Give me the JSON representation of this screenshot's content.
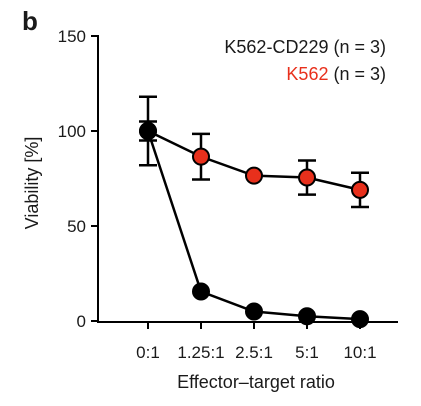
{
  "panel_label": "b",
  "chart_data": {
    "type": "line",
    "title": "",
    "xlabel": "Effector–target ratio",
    "ylabel": "Viability [%]",
    "categories": [
      "0:1",
      "1.25:1",
      "2.5:1",
      "5:1",
      "10:1"
    ],
    "ylim": [
      0,
      150
    ],
    "yticks": [
      0,
      50,
      100,
      150
    ],
    "grid": false,
    "legend_position": "top-right",
    "series": [
      {
        "name": "K562-CD229",
        "n_label": "(n = 3)",
        "color": "#000000",
        "text_color": "#1a1a1a",
        "values": [
          100,
          15.5,
          5,
          2.5,
          1
        ],
        "errors": [
          18,
          1,
          1,
          1,
          1
        ]
      },
      {
        "name": "K562",
        "n_label": "(n = 3)",
        "color": "#e8301c",
        "text_color": "#e8301c",
        "values": [
          100,
          86.5,
          76.5,
          75.5,
          69
        ],
        "errors": [
          5,
          12,
          1,
          9,
          9
        ]
      }
    ]
  }
}
